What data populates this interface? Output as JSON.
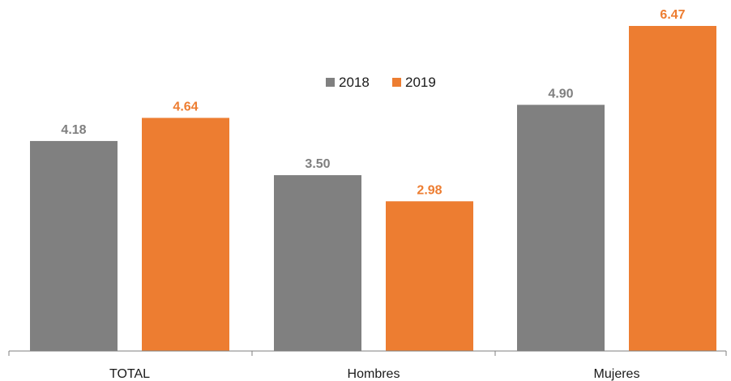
{
  "chart_data": {
    "type": "bar",
    "categories": [
      "TOTAL",
      "Hombres",
      "Mujeres"
    ],
    "series": [
      {
        "name": "2018",
        "values": [
          4.18,
          3.5,
          4.9
        ],
        "color": "#808080",
        "label_color": "#7f7f7f"
      },
      {
        "name": "2019",
        "values": [
          4.64,
          2.98,
          6.47
        ],
        "color": "#ed7d31",
        "label_color": "#ed7d31"
      }
    ],
    "data_labels": [
      [
        "4.18",
        "3.50",
        "4.90"
      ],
      [
        "4.64",
        "2.98",
        "6.47"
      ]
    ],
    "title": "",
    "xlabel": "",
    "ylabel": "",
    "ylim": [
      0,
      6.47
    ],
    "grid": false,
    "legend_position": "top-center",
    "axis_color": "#7f7f7f"
  }
}
